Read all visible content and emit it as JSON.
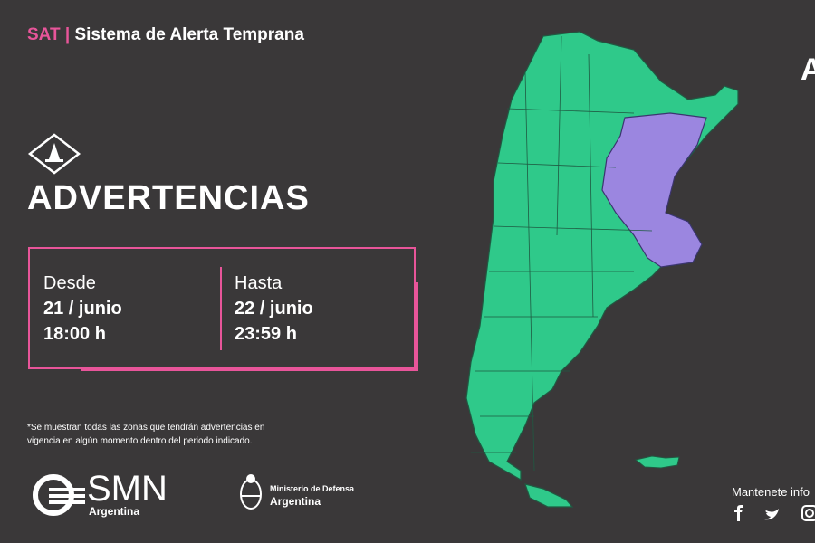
{
  "header": {
    "tag": "SAT",
    "separator": "|",
    "title": "Sistema de Alerta Temprana"
  },
  "alert": {
    "title": "ADVERTENCIAS",
    "from": {
      "label": "Desde",
      "date": "21 / junio",
      "time": "18:00 h"
    },
    "to": {
      "label": "Hasta",
      "date": "22 / junio",
      "time": "23:59 h"
    }
  },
  "footnote": [
    "*Se muestran todas las zonas que tendrán advertencias en",
    "vigencia en algún momento dentro del periodo indicado."
  ],
  "logos": {
    "smn": "SMN",
    "smn_sub": "Argentina",
    "ministry": "Ministerio de Defensa",
    "ministry_sub": "Argentina"
  },
  "social": {
    "text": "Mantenete info",
    "corner": "A"
  }
}
